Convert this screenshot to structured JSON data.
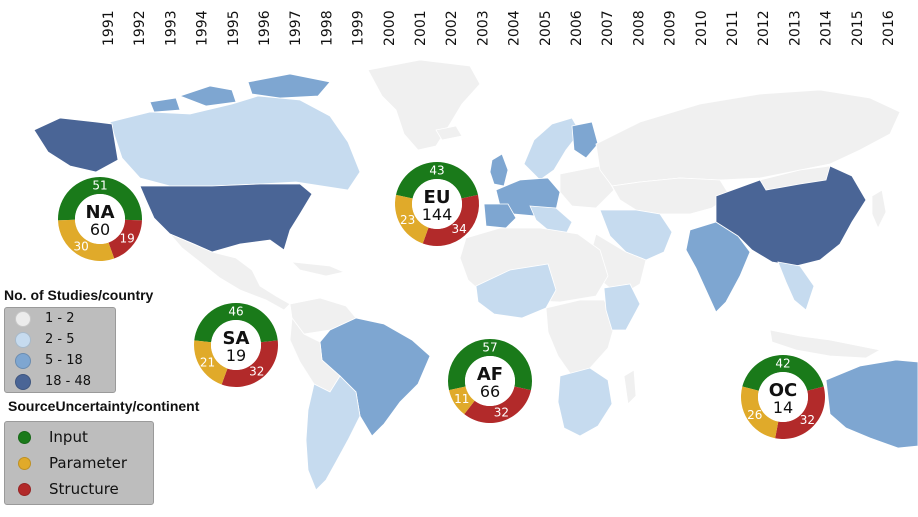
{
  "years": [
    "1991",
    "1992",
    "1993",
    "1994",
    "1995",
    "1996",
    "1997",
    "1998",
    "1999",
    "2000",
    "2001",
    "2002",
    "2003",
    "2004",
    "2005",
    "2006",
    "2007",
    "2008",
    "2009",
    "2010",
    "2011",
    "2012",
    "2013",
    "2014",
    "2015",
    "2016"
  ],
  "legend_studies": {
    "title": "No. of Studies/country",
    "items": [
      {
        "label": "1 - 2",
        "color": "#ececec"
      },
      {
        "label": "2 - 5",
        "color": "#c6dbef"
      },
      {
        "label": "5 - 18",
        "color": "#7ea6d1"
      },
      {
        "label": "18 - 48",
        "color": "#4a6596"
      }
    ]
  },
  "legend_uncertainty": {
    "title": "SourceUncertainty/continent",
    "items": [
      {
        "label": "Input",
        "color": "#1a7a1a"
      },
      {
        "label": "Parameter",
        "color": "#e0aa2a"
      },
      {
        "label": "Structure",
        "color": "#b22a2a"
      }
    ]
  },
  "continents": [
    {
      "code": "NA",
      "total": "60",
      "input": "51",
      "parameter": "30",
      "structure": "19"
    },
    {
      "code": "EU",
      "total": "144",
      "input": "43",
      "parameter": "23",
      "structure": "34"
    },
    {
      "code": "SA",
      "total": "19",
      "input": "46",
      "parameter": "21",
      "structure": "32"
    },
    {
      "code": "AF",
      "total": "66",
      "input": "57",
      "parameter": "11",
      "structure": "32"
    },
    {
      "code": "OC",
      "total": "14",
      "input": "42",
      "parameter": "26",
      "structure": "32"
    }
  ],
  "colors": {
    "ocean": "#ffffff",
    "land_default": "#f0f0f0",
    "input": "#1a7a1a",
    "parameter": "#e0aa2a",
    "structure": "#b22a2a",
    "donut_center": "#ffffff"
  }
}
